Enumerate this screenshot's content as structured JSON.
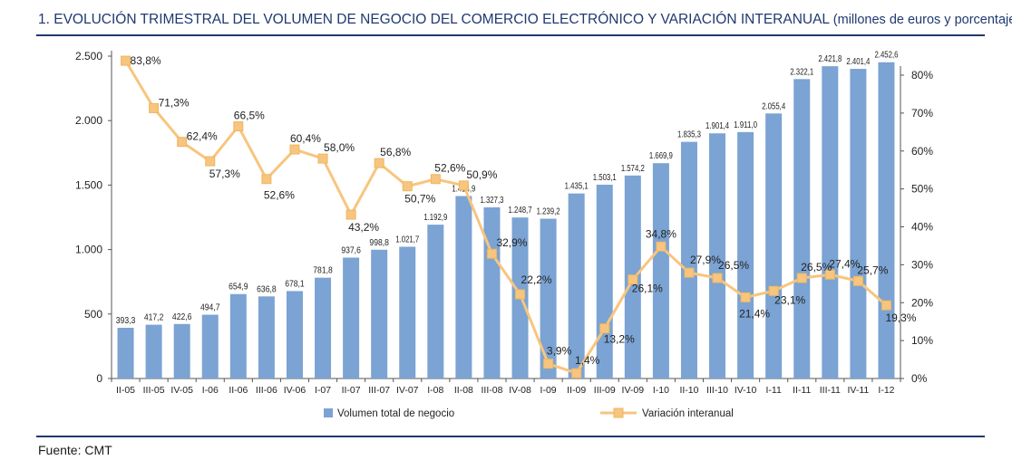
{
  "title": {
    "main": "1. EVOLUCIÓN TRIMESTRAL DEL VOLUMEN DE NEGOCIO DEL COMERCIO ELECTRÓNICO Y VARIACIÓN INTERANUAL",
    "sub": "(millones de euros y porcentaje)"
  },
  "source": "Fuente: CMT",
  "chart_data": {
    "type": "bar",
    "categories": [
      "II-05",
      "III-05",
      "IV-05",
      "I-06",
      "II-06",
      "III-06",
      "IV-06",
      "I-07",
      "II-07",
      "III-07",
      "IV-07",
      "I-08",
      "II-08",
      "III-08",
      "IV-08",
      "I-09",
      "II-09",
      "III-09",
      "IV-09",
      "I-10",
      "II-10",
      "III-10",
      "IV-10",
      "I-11",
      "II-11",
      "III-11",
      "IV-11",
      "I-12"
    ],
    "series": [
      {
        "name": "Volumen total de negocio",
        "type": "bar",
        "axis": "left",
        "color": "#7ba3d3",
        "values": [
          393.3,
          417.2,
          422.6,
          494.7,
          654.9,
          636.8,
          678.1,
          781.8,
          937.6,
          998.8,
          1021.7,
          1192.9,
          1414.9,
          1327.3,
          1248.7,
          1239.2,
          1435.1,
          1503.1,
          1574.2,
          1669.9,
          1835.3,
          1901.4,
          1911.0,
          2055.4,
          2322.1,
          2421.8,
          2401.4,
          2452.6
        ],
        "labels": [
          "393,3",
          "417,2",
          "422,6",
          "494,7",
          "654,9",
          "636,8",
          "678,1",
          "781,8",
          "937,6",
          "998,8",
          "1.021,7",
          "1.192,9",
          "1.414,9",
          "1.327,3",
          "1.248,7",
          "1.239,2",
          "1.435,1",
          "1.503,1",
          "1.574,2",
          "1.669,9",
          "1.835,3",
          "1.901,4",
          "1.911,0",
          "2.055,4",
          "2.322,1",
          "2.421,8",
          "2.401,4",
          "2.452,6"
        ]
      },
      {
        "name": "Variación interanual",
        "type": "line",
        "axis": "right",
        "color": "#f7c57e",
        "values": [
          83.8,
          71.3,
          62.4,
          57.3,
          66.5,
          52.6,
          60.4,
          58.0,
          43.2,
          56.8,
          50.7,
          52.6,
          50.9,
          32.9,
          22.2,
          3.9,
          1.4,
          13.2,
          26.1,
          34.8,
          27.9,
          26.5,
          21.4,
          23.1,
          26.5,
          27.4,
          25.7,
          19.3
        ],
        "labels": [
          "83,8%",
          "71,3%",
          "62,4%",
          "57,3%",
          "66,5%",
          "52,6%",
          "60,4%",
          "58,0%",
          "43,2%",
          "56,8%",
          "50,7%",
          "52,6%",
          "50,9%",
          "32,9%",
          "22,2%",
          "3,9%",
          "1,4%",
          "13,2%",
          "26,1%",
          "34,8%",
          "27,9%",
          "26,5%",
          "21,4%",
          "23,1%",
          "26,5%",
          "27,4%",
          "25,7%",
          "19,3%"
        ]
      }
    ],
    "y_left": {
      "range": [
        0,
        2500
      ],
      "ticks": [
        0,
        500,
        1000,
        1500,
        2000,
        2500
      ],
      "tick_labels": [
        "0",
        "500",
        "1.000",
        "1.500",
        "2.000",
        "2.500"
      ]
    },
    "y_right": {
      "range": [
        0,
        85
      ],
      "ticks": [
        0,
        10,
        20,
        30,
        40,
        50,
        60,
        70,
        80
      ],
      "tick_labels": [
        "0%",
        "10%",
        "20%",
        "30%",
        "40%",
        "50%",
        "60%",
        "70%",
        "80%"
      ]
    },
    "grid": false,
    "legend_position": "bottom"
  }
}
